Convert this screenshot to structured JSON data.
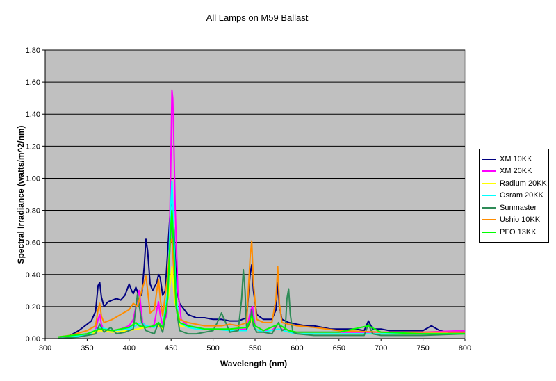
{
  "chart_data": {
    "type": "line",
    "title": "All Lamps on M59 Ballast",
    "xlabel": "Wavelength (nm)",
    "ylabel": "Spectral Irradiance (watts/m^2/nm)",
    "xlim": [
      300,
      800
    ],
    "ylim": [
      0,
      1.8
    ],
    "xticks": [
      300,
      350,
      400,
      450,
      500,
      550,
      600,
      650,
      700,
      750,
      800
    ],
    "yticks": [
      0.0,
      0.2,
      0.4,
      0.6,
      0.8,
      1.0,
      1.2,
      1.4,
      1.6,
      1.8
    ],
    "xtick_labels": [
      "300",
      "350",
      "400",
      "450",
      "500",
      "550",
      "600",
      "650",
      "700",
      "750",
      "800"
    ],
    "ytick_labels": [
      "0.00",
      "0.20",
      "0.40",
      "0.60",
      "0.80",
      "1.00",
      "1.20",
      "1.40",
      "1.60",
      "1.80"
    ],
    "grid": true,
    "legend_position": "right",
    "plot_background": "#c0c0c0",
    "series": [
      {
        "name": "XM 10KK",
        "color": "#000080",
        "x": [
          315,
          320,
          330,
          340,
          350,
          355,
          360,
          363,
          365,
          367,
          370,
          375,
          380,
          385,
          390,
          395,
          400,
          403,
          405,
          408,
          410,
          413,
          415,
          418,
          420,
          422,
          425,
          428,
          430,
          433,
          435,
          437,
          440,
          443,
          446,
          449,
          451,
          453,
          455,
          457,
          460,
          470,
          480,
          490,
          500,
          510,
          520,
          530,
          540,
          544,
          546,
          548,
          552,
          560,
          570,
          575,
          577,
          579,
          582,
          590,
          600,
          610,
          620,
          630,
          640,
          650,
          660,
          670,
          680,
          685,
          690,
          700,
          710,
          720,
          730,
          740,
          750,
          760,
          770,
          780,
          790,
          800
        ],
        "y": [
          0.01,
          0.01,
          0.02,
          0.05,
          0.09,
          0.11,
          0.17,
          0.33,
          0.35,
          0.26,
          0.2,
          0.23,
          0.24,
          0.25,
          0.24,
          0.27,
          0.34,
          0.3,
          0.28,
          0.32,
          0.29,
          0.27,
          0.27,
          0.45,
          0.62,
          0.55,
          0.34,
          0.3,
          0.32,
          0.35,
          0.4,
          0.38,
          0.27,
          0.3,
          0.55,
          0.8,
          0.88,
          0.72,
          0.5,
          0.3,
          0.22,
          0.15,
          0.13,
          0.13,
          0.12,
          0.12,
          0.11,
          0.11,
          0.13,
          0.4,
          0.46,
          0.3,
          0.15,
          0.12,
          0.12,
          0.18,
          0.35,
          0.2,
          0.12,
          0.1,
          0.09,
          0.08,
          0.08,
          0.07,
          0.06,
          0.06,
          0.06,
          0.06,
          0.05,
          0.11,
          0.06,
          0.06,
          0.05,
          0.05,
          0.05,
          0.05,
          0.05,
          0.08,
          0.05,
          0.04,
          0.04,
          0.04
        ]
      },
      {
        "name": "XM 20KK",
        "color": "#ff00ff",
        "x": [
          315,
          330,
          350,
          360,
          363,
          365,
          367,
          370,
          380,
          390,
          400,
          405,
          410,
          412,
          414,
          416,
          420,
          425,
          430,
          433,
          435,
          437,
          440,
          445,
          448,
          450,
          451,
          452,
          453,
          455,
          458,
          462,
          470,
          480,
          490,
          500,
          520,
          540,
          545,
          547,
          550,
          560,
          570,
          576,
          578,
          581,
          590,
          600,
          650,
          700,
          750,
          800
        ],
        "y": [
          0.01,
          0.01,
          0.03,
          0.05,
          0.12,
          0.15,
          0.09,
          0.05,
          0.05,
          0.06,
          0.08,
          0.12,
          0.25,
          0.3,
          0.2,
          0.1,
          0.08,
          0.07,
          0.09,
          0.18,
          0.23,
          0.15,
          0.08,
          0.15,
          0.6,
          1.2,
          1.55,
          1.5,
          1.3,
          0.8,
          0.3,
          0.12,
          0.08,
          0.07,
          0.06,
          0.06,
          0.05,
          0.06,
          0.18,
          0.2,
          0.08,
          0.05,
          0.05,
          0.08,
          0.1,
          0.06,
          0.04,
          0.04,
          0.04,
          0.04,
          0.04,
          0.05
        ]
      },
      {
        "name": "Radium 20KK",
        "color": "#ffff00",
        "x": [
          315,
          350,
          365,
          380,
          400,
          420,
          435,
          440,
          448,
          451,
          454,
          460,
          480,
          500,
          520,
          540,
          546,
          550,
          560,
          578,
          590,
          600,
          650,
          700,
          750,
          800
        ],
        "y": [
          0.01,
          0.02,
          0.05,
          0.04,
          0.05,
          0.07,
          0.08,
          0.06,
          0.3,
          0.45,
          0.25,
          0.08,
          0.06,
          0.06,
          0.05,
          0.05,
          0.12,
          0.06,
          0.04,
          0.06,
          0.04,
          0.03,
          0.03,
          0.03,
          0.03,
          0.03
        ]
      },
      {
        "name": "Osram 20KK",
        "color": "#00ffff",
        "x": [
          315,
          350,
          365,
          380,
          400,
          415,
          420,
          430,
          435,
          440,
          446,
          449,
          451,
          453,
          456,
          460,
          470,
          480,
          500,
          520,
          540,
          546,
          550,
          560,
          578,
          590,
          600,
          650,
          700,
          750,
          800
        ],
        "y": [
          0.01,
          0.02,
          0.07,
          0.05,
          0.06,
          0.1,
          0.08,
          0.07,
          0.1,
          0.07,
          0.3,
          0.75,
          0.98,
          0.7,
          0.25,
          0.1,
          0.07,
          0.06,
          0.06,
          0.05,
          0.05,
          0.15,
          0.06,
          0.04,
          0.06,
          0.04,
          0.03,
          0.03,
          0.03,
          0.03,
          0.03
        ]
      },
      {
        "name": "Sunmaster",
        "color": "#2e8b57",
        "x": [
          315,
          340,
          360,
          365,
          370,
          378,
          385,
          395,
          405,
          410,
          415,
          420,
          425,
          430,
          435,
          440,
          445,
          449,
          451,
          453,
          456,
          460,
          470,
          480,
          490,
          500,
          505,
          510,
          520,
          530,
          534,
          536,
          538,
          540,
          544,
          546,
          548,
          552,
          560,
          570,
          578,
          582,
          586,
          588,
          590,
          592,
          595,
          600,
          620,
          650,
          680,
          685,
          690,
          700,
          750,
          800
        ],
        "y": [
          0.0,
          0.01,
          0.03,
          0.09,
          0.04,
          0.07,
          0.03,
          0.04,
          0.06,
          0.28,
          0.1,
          0.05,
          0.04,
          0.03,
          0.1,
          0.04,
          0.2,
          0.6,
          0.8,
          0.55,
          0.2,
          0.05,
          0.03,
          0.03,
          0.04,
          0.05,
          0.1,
          0.16,
          0.04,
          0.05,
          0.25,
          0.43,
          0.3,
          0.06,
          0.1,
          0.18,
          0.08,
          0.04,
          0.04,
          0.03,
          0.1,
          0.05,
          0.06,
          0.25,
          0.31,
          0.15,
          0.04,
          0.03,
          0.02,
          0.02,
          0.02,
          0.09,
          0.03,
          0.02,
          0.02,
          0.03
        ]
      },
      {
        "name": "Ushio 10KK",
        "color": "#ff8c00",
        "x": [
          315,
          330,
          350,
          360,
          363,
          365,
          367,
          370,
          380,
          390,
          400,
          405,
          410,
          415,
          418,
          420,
          422,
          425,
          430,
          433,
          435,
          437,
          440,
          446,
          449,
          451,
          453,
          456,
          460,
          470,
          480,
          490,
          500,
          510,
          520,
          530,
          540,
          544,
          546,
          548,
          552,
          560,
          570,
          575,
          577,
          579,
          582,
          590,
          600,
          620,
          650,
          700,
          750,
          800
        ],
        "y": [
          0.01,
          0.02,
          0.05,
          0.08,
          0.18,
          0.22,
          0.14,
          0.1,
          0.12,
          0.15,
          0.18,
          0.22,
          0.2,
          0.3,
          0.35,
          0.39,
          0.3,
          0.16,
          0.18,
          0.3,
          0.37,
          0.25,
          0.14,
          0.4,
          0.6,
          0.62,
          0.45,
          0.2,
          0.12,
          0.1,
          0.09,
          0.08,
          0.08,
          0.08,
          0.09,
          0.08,
          0.1,
          0.5,
          0.61,
          0.35,
          0.12,
          0.1,
          0.1,
          0.25,
          0.45,
          0.22,
          0.1,
          0.09,
          0.08,
          0.07,
          0.05,
          0.04,
          0.04,
          0.04
        ]
      },
      {
        "name": "PFO 13KK",
        "color": "#00ff00",
        "x": [
          315,
          350,
          365,
          380,
          400,
          408,
          412,
          420,
          430,
          435,
          440,
          446,
          449,
          451,
          453,
          456,
          460,
          470,
          480,
          490,
          500,
          520,
          540,
          546,
          550,
          560,
          578,
          590,
          600,
          650,
          685,
          700,
          750,
          800
        ],
        "y": [
          0.01,
          0.03,
          0.06,
          0.05,
          0.07,
          0.1,
          0.08,
          0.07,
          0.08,
          0.1,
          0.07,
          0.25,
          0.65,
          0.8,
          0.6,
          0.2,
          0.1,
          0.08,
          0.07,
          0.06,
          0.06,
          0.06,
          0.07,
          0.14,
          0.08,
          0.05,
          0.09,
          0.05,
          0.04,
          0.04,
          0.08,
          0.04,
          0.03,
          0.03
        ]
      }
    ]
  }
}
